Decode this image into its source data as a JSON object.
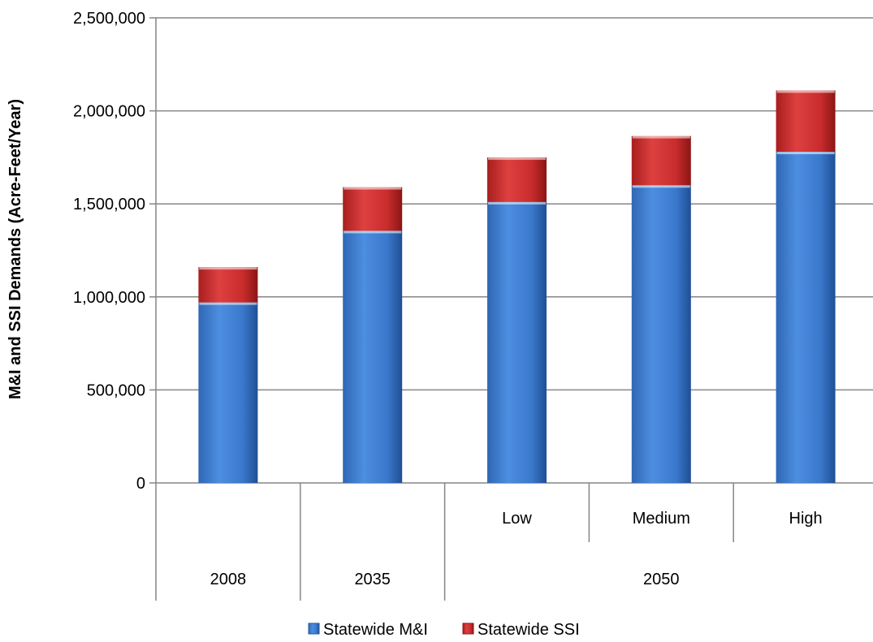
{
  "chart_data": {
    "type": "bar",
    "stacked": true,
    "categories": [
      "2008",
      "2035",
      "Low",
      "Medium",
      "High"
    ],
    "category_groups": [
      {
        "label": "2008",
        "categories": [
          "2008"
        ]
      },
      {
        "label": "2035",
        "categories": [
          "2035"
        ]
      },
      {
        "label": "2050",
        "categories": [
          "Low",
          "Medium",
          "High"
        ]
      }
    ],
    "series": [
      {
        "name": "Statewide M&I",
        "color": "#3f7fcf",
        "values": [
          970000,
          1355000,
          1510000,
          1600000,
          1780000
        ]
      },
      {
        "name": "Statewide SSI",
        "color": "#c22a2a",
        "values": [
          190000,
          235000,
          240000,
          265000,
          330000
        ]
      }
    ],
    "ylabel": "M&I and SSI Demands (Acre-Feet/Year)",
    "ylim": [
      0,
      2500000
    ],
    "yticks": [
      0,
      500000,
      1000000,
      1500000,
      2000000,
      2500000
    ],
    "ytick_labels": [
      "0",
      "500,000",
      "1,000,000",
      "1,500,000",
      "2,000,000",
      "2,500,000"
    ],
    "grid": true,
    "legend_position": "bottom"
  }
}
